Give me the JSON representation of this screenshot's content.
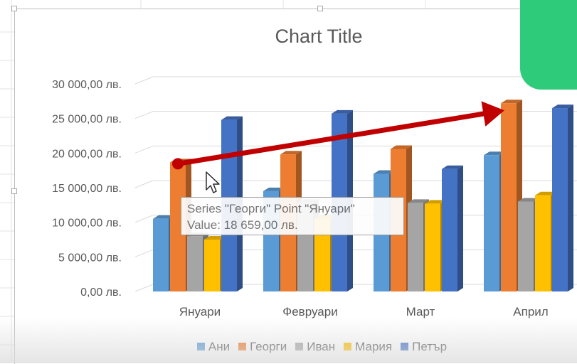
{
  "chart_data": {
    "type": "bar",
    "title": "Chart Title",
    "categories": [
      "Януари",
      "Февруари",
      "Март",
      "Април"
    ],
    "series": [
      {
        "name": "Ани",
        "color": "#5B9BD5",
        "values": [
          10500,
          14500,
          17000,
          19700
        ]
      },
      {
        "name": "Георги",
        "color": "#ED7D31",
        "values": [
          18659,
          19800,
          20600,
          27200
        ]
      },
      {
        "name": "Иван",
        "color": "#A5A5A5",
        "values": [
          8000,
          12800,
          12800,
          13000
        ]
      },
      {
        "name": "Мария",
        "color": "#FFC000",
        "values": [
          7500,
          10500,
          12700,
          13900
        ]
      },
      {
        "name": "Петър",
        "color": "#4472C4",
        "values": [
          24800,
          25700,
          17700,
          26500
        ]
      }
    ],
    "ylim": [
      0,
      30000
    ],
    "yticks": [
      0,
      5000,
      10000,
      15000,
      20000,
      25000,
      30000
    ],
    "ytick_labels": [
      "0,00 лв.",
      "5 000,00 лв.",
      "10 000,00 лв.",
      "15 000,00 лв.",
      "20 000,00 лв.",
      "25 000,00 лв.",
      "30 000,00 лв."
    ],
    "grid": true,
    "legend_position": "bottom",
    "style": "3d-clustered-column"
  },
  "tooltip": {
    "line1": "Series \"Георги\" Point \"Януари\"",
    "line2": "Value: 18 659,00 лв."
  },
  "annotation": {
    "type": "arrow",
    "color": "#C00000",
    "from": {
      "series": "Георги",
      "category": "Януари"
    },
    "to": {
      "series": "Георги",
      "category": "Април"
    }
  }
}
